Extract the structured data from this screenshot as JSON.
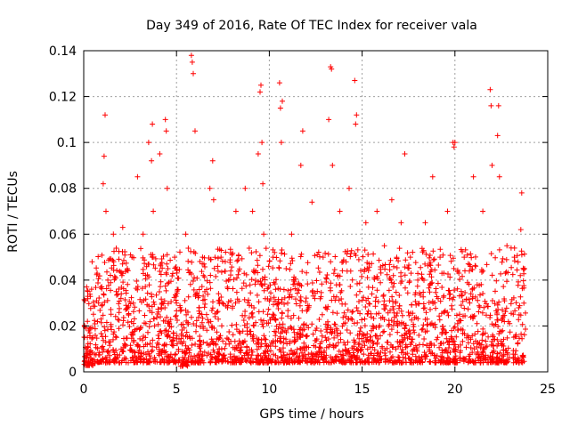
{
  "chart_data": {
    "type": "scatter",
    "title": "Day 349 of 2016, Rate Of TEC Index for receiver vala",
    "xlabel": "GPS time / hours",
    "ylabel": "ROTI / TECUs",
    "xlim": [
      0,
      25
    ],
    "ylim": [
      0,
      0.14
    ],
    "xticks": [
      0,
      5,
      10,
      15,
      20,
      25
    ],
    "yticks": [
      0,
      0.02,
      0.04,
      0.06,
      0.08,
      0.1,
      0.12,
      0.14
    ],
    "xtick_labels": [
      "0",
      "5",
      "10",
      "15",
      "20",
      "25"
    ],
    "ytick_labels": [
      "0",
      "0.02",
      "0.04",
      "0.06",
      "0.08",
      "0.1",
      "0.12",
      "0.14"
    ],
    "grid": true,
    "marker": "plus",
    "color": "#ff0000",
    "series": [
      {
        "name": "ROTI",
        "x": [
          0.05,
          0.2,
          0.45,
          0.8,
          1.05,
          1.1,
          1.15,
          1.2,
          1.3,
          1.6,
          1.75,
          2.1,
          2.35,
          2.6,
          2.9,
          3.2,
          3.5,
          3.65,
          3.7,
          3.75,
          4.1,
          4.4,
          4.45,
          4.5,
          4.9,
          5.2,
          5.5,
          5.8,
          5.85,
          5.9,
          6.0,
          6.4,
          6.8,
          6.95,
          7.0,
          7.4,
          7.8,
          8.2,
          8.7,
          9.1,
          9.4,
          9.5,
          9.55,
          9.6,
          9.65,
          9.7,
          10.2,
          10.55,
          10.6,
          10.65,
          10.7,
          11.2,
          11.7,
          11.8,
          12.3,
          12.9,
          13.2,
          13.3,
          13.35,
          13.4,
          13.8,
          14.3,
          14.6,
          14.65,
          14.7,
          15.2,
          15.8,
          16.2,
          16.6,
          17.1,
          17.3,
          17.6,
          18.0,
          18.4,
          18.8,
          19.2,
          19.6,
          19.9,
          19.95,
          20.0,
          20.5,
          21.0,
          21.5,
          21.9,
          21.95,
          22.0,
          22.3,
          22.35,
          22.4,
          22.8,
          23.2,
          23.55,
          23.6,
          23.75
        ],
        "y": [
          0.015,
          0.022,
          0.048,
          0.03,
          0.082,
          0.094,
          0.112,
          0.07,
          0.04,
          0.06,
          0.035,
          0.063,
          0.045,
          0.05,
          0.085,
          0.06,
          0.1,
          0.092,
          0.108,
          0.07,
          0.095,
          0.11,
          0.105,
          0.08,
          0.05,
          0.028,
          0.06,
          0.138,
          0.135,
          0.13,
          0.105,
          0.05,
          0.08,
          0.092,
          0.075,
          0.05,
          0.04,
          0.07,
          0.08,
          0.07,
          0.095,
          0.122,
          0.125,
          0.1,
          0.082,
          0.06,
          0.05,
          0.126,
          0.115,
          0.1,
          0.118,
          0.06,
          0.09,
          0.105,
          0.074,
          0.05,
          0.11,
          0.133,
          0.132,
          0.09,
          0.07,
          0.08,
          0.127,
          0.108,
          0.112,
          0.065,
          0.07,
          0.055,
          0.075,
          0.065,
          0.095,
          0.05,
          0.04,
          0.065,
          0.085,
          0.05,
          0.07,
          0.1,
          0.098,
          0.1,
          0.05,
          0.085,
          0.07,
          0.123,
          0.116,
          0.09,
          0.103,
          0.116,
          0.085,
          0.055,
          0.05,
          0.062,
          0.078,
          0.045
        ]
      }
    ]
  }
}
